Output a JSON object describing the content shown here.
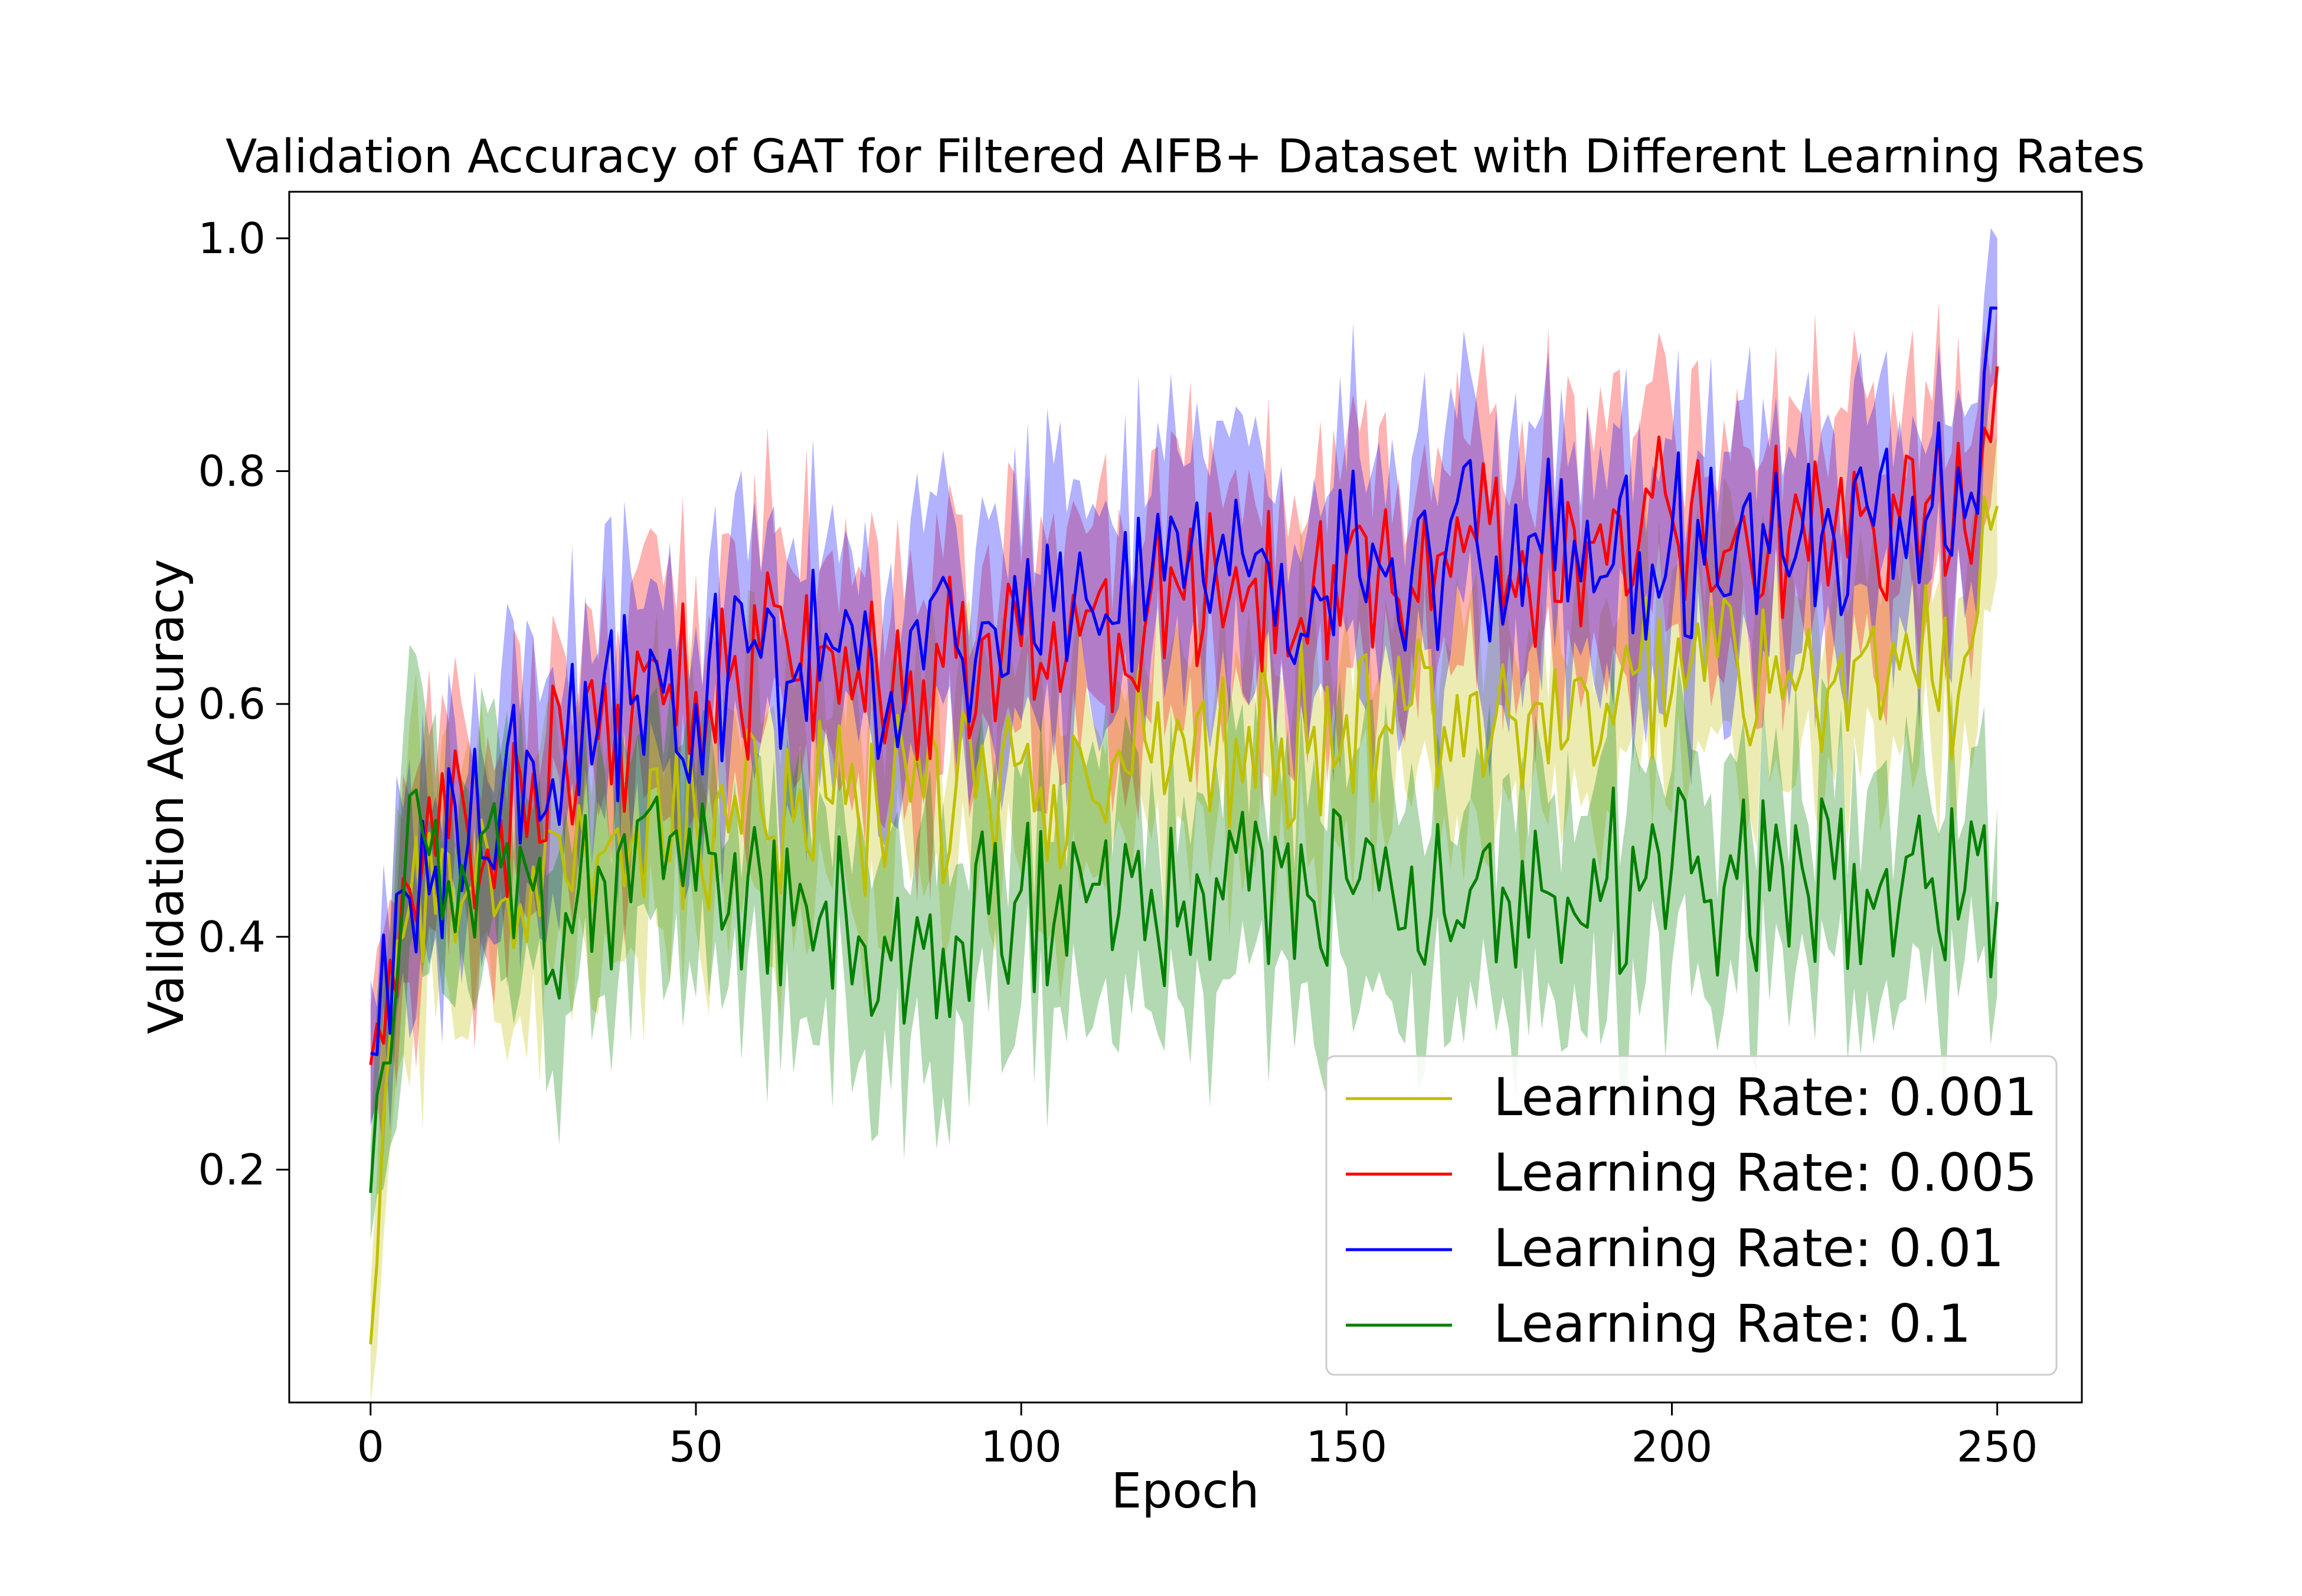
{
  "chart_data": {
    "type": "line",
    "title": "Validation Accuracy of GAT for Filtered AIFB+ Dataset with Different Learning Rates",
    "xlabel": "Epoch",
    "ylabel": "Validation Accuracy",
    "xlim": [
      -12.5,
      263
    ],
    "ylim": [
      0.0,
      1.04
    ],
    "xticks": [
      0,
      50,
      100,
      150,
      200,
      250
    ],
    "xtick_labels": [
      "0",
      "50",
      "100",
      "150",
      "200",
      "250"
    ],
    "yticks": [
      0.2,
      0.4,
      0.6,
      0.8,
      1.0
    ],
    "ytick_labels": [
      "0.2",
      "0.4",
      "0.6",
      "0.8",
      "1.0"
    ],
    "grid": false,
    "legend_position": "lower-right",
    "shaded_band": "variability band around each series",
    "x_sample_step": 5,
    "series": [
      {
        "name": "Learning Rate: 0.001",
        "color": "#bfbf00",
        "x": [
          0,
          5,
          10,
          15,
          20,
          25,
          30,
          35,
          40,
          45,
          50,
          55,
          60,
          65,
          70,
          75,
          80,
          85,
          90,
          95,
          100,
          105,
          110,
          115,
          120,
          125,
          130,
          135,
          140,
          145,
          150,
          155,
          160,
          165,
          170,
          175,
          180,
          185,
          190,
          195,
          200,
          205,
          210,
          215,
          220,
          225,
          230,
          235,
          240,
          245,
          250
        ],
        "values": [
          0.05,
          0.4,
          0.42,
          0.44,
          0.43,
          0.46,
          0.45,
          0.47,
          0.48,
          0.47,
          0.5,
          0.49,
          0.51,
          0.5,
          0.52,
          0.5,
          0.51,
          0.52,
          0.53,
          0.52,
          0.55,
          0.53,
          0.54,
          0.56,
          0.55,
          0.57,
          0.56,
          0.58,
          0.57,
          0.58,
          0.59,
          0.57,
          0.6,
          0.58,
          0.61,
          0.59,
          0.6,
          0.62,
          0.6,
          0.63,
          0.61,
          0.62,
          0.64,
          0.61,
          0.63,
          0.62,
          0.65,
          0.63,
          0.62,
          0.64,
          0.77
        ],
        "band": [
          0.06,
          0.1,
          0.09,
          0.09,
          0.09,
          0.09,
          0.09,
          0.09,
          0.09,
          0.09,
          0.09,
          0.09,
          0.08,
          0.08,
          0.08,
          0.08,
          0.08,
          0.08,
          0.08,
          0.08,
          0.08,
          0.08,
          0.08,
          0.07,
          0.07,
          0.07,
          0.07,
          0.07,
          0.07,
          0.07,
          0.07,
          0.07,
          0.07,
          0.07,
          0.07,
          0.07,
          0.07,
          0.07,
          0.07,
          0.07,
          0.07,
          0.07,
          0.07,
          0.07,
          0.07,
          0.07,
          0.07,
          0.07,
          0.07,
          0.07,
          0.06
        ]
      },
      {
        "name": "Learning Rate: 0.005",
        "color": "#ff0000",
        "x": [
          0,
          5,
          10,
          15,
          20,
          25,
          30,
          35,
          40,
          45,
          50,
          55,
          60,
          65,
          70,
          75,
          80,
          85,
          90,
          95,
          100,
          105,
          110,
          115,
          120,
          125,
          130,
          135,
          140,
          145,
          150,
          155,
          160,
          165,
          170,
          175,
          180,
          185,
          190,
          195,
          200,
          205,
          210,
          215,
          220,
          225,
          230,
          235,
          240,
          245,
          250
        ],
        "values": [
          0.29,
          0.45,
          0.47,
          0.49,
          0.5,
          0.54,
          0.55,
          0.57,
          0.58,
          0.6,
          0.61,
          0.62,
          0.64,
          0.62,
          0.65,
          0.63,
          0.6,
          0.62,
          0.64,
          0.66,
          0.65,
          0.67,
          0.68,
          0.66,
          0.7,
          0.69,
          0.71,
          0.7,
          0.72,
          0.71,
          0.73,
          0.72,
          0.7,
          0.73,
          0.74,
          0.71,
          0.73,
          0.75,
          0.72,
          0.74,
          0.76,
          0.73,
          0.75,
          0.74,
          0.76,
          0.75,
          0.77,
          0.76,
          0.78,
          0.75,
          0.89
        ],
        "band": [
          0.05,
          0.08,
          0.08,
          0.08,
          0.08,
          0.08,
          0.08,
          0.08,
          0.08,
          0.08,
          0.08,
          0.08,
          0.08,
          0.08,
          0.08,
          0.08,
          0.08,
          0.08,
          0.08,
          0.08,
          0.08,
          0.08,
          0.08,
          0.08,
          0.08,
          0.08,
          0.08,
          0.08,
          0.08,
          0.08,
          0.08,
          0.08,
          0.08,
          0.08,
          0.08,
          0.08,
          0.08,
          0.08,
          0.08,
          0.08,
          0.08,
          0.08,
          0.08,
          0.08,
          0.08,
          0.08,
          0.08,
          0.08,
          0.08,
          0.08,
          0.06
        ]
      },
      {
        "name": "Learning Rate: 0.01",
        "color": "#0000ff",
        "x": [
          0,
          5,
          10,
          15,
          20,
          25,
          30,
          35,
          40,
          45,
          50,
          55,
          60,
          65,
          70,
          75,
          80,
          85,
          90,
          95,
          100,
          105,
          110,
          115,
          120,
          125,
          130,
          135,
          140,
          145,
          150,
          155,
          160,
          165,
          170,
          175,
          180,
          185,
          190,
          195,
          200,
          205,
          210,
          215,
          220,
          225,
          230,
          235,
          240,
          245,
          250
        ],
        "values": [
          0.3,
          0.44,
          0.46,
          0.48,
          0.51,
          0.55,
          0.56,
          0.58,
          0.6,
          0.61,
          0.6,
          0.63,
          0.64,
          0.62,
          0.66,
          0.63,
          0.61,
          0.63,
          0.65,
          0.67,
          0.66,
          0.68,
          0.69,
          0.67,
          0.71,
          0.7,
          0.72,
          0.71,
          0.72,
          0.7,
          0.73,
          0.72,
          0.71,
          0.72,
          0.74,
          0.7,
          0.73,
          0.74,
          0.71,
          0.73,
          0.75,
          0.72,
          0.74,
          0.73,
          0.75,
          0.74,
          0.77,
          0.76,
          0.77,
          0.76,
          0.94
        ],
        "band": [
          0.05,
          0.08,
          0.08,
          0.08,
          0.08,
          0.08,
          0.08,
          0.08,
          0.08,
          0.08,
          0.08,
          0.08,
          0.08,
          0.08,
          0.08,
          0.08,
          0.08,
          0.08,
          0.08,
          0.08,
          0.08,
          0.08,
          0.08,
          0.08,
          0.08,
          0.08,
          0.08,
          0.08,
          0.08,
          0.08,
          0.08,
          0.08,
          0.08,
          0.08,
          0.08,
          0.08,
          0.08,
          0.08,
          0.08,
          0.08,
          0.08,
          0.08,
          0.08,
          0.08,
          0.08,
          0.08,
          0.08,
          0.08,
          0.08,
          0.08,
          0.06
        ]
      },
      {
        "name": "Learning Rate: 0.1",
        "color": "#008000",
        "x": [
          0,
          5,
          10,
          15,
          20,
          25,
          30,
          35,
          40,
          45,
          50,
          55,
          60,
          65,
          70,
          75,
          80,
          85,
          90,
          95,
          100,
          105,
          110,
          115,
          120,
          125,
          130,
          135,
          140,
          145,
          150,
          155,
          160,
          165,
          170,
          175,
          180,
          185,
          190,
          195,
          200,
          205,
          210,
          215,
          220,
          225,
          230,
          235,
          240,
          245,
          250
        ],
        "values": [
          0.18,
          0.43,
          0.5,
          0.44,
          0.46,
          0.44,
          0.42,
          0.46,
          0.43,
          0.45,
          0.44,
          0.42,
          0.45,
          0.41,
          0.43,
          0.4,
          0.38,
          0.39,
          0.4,
          0.42,
          0.44,
          0.41,
          0.43,
          0.42,
          0.44,
          0.43,
          0.45,
          0.44,
          0.46,
          0.43,
          0.45,
          0.44,
          0.46,
          0.42,
          0.45,
          0.43,
          0.44,
          0.42,
          0.45,
          0.44,
          0.46,
          0.43,
          0.45,
          0.44,
          0.46,
          0.45,
          0.44,
          0.43,
          0.45,
          0.44,
          0.43
        ],
        "band": [
          0.05,
          0.1,
          0.08,
          0.08,
          0.08,
          0.08,
          0.08,
          0.08,
          0.08,
          0.08,
          0.08,
          0.08,
          0.08,
          0.08,
          0.08,
          0.08,
          0.08,
          0.08,
          0.08,
          0.08,
          0.08,
          0.08,
          0.08,
          0.08,
          0.08,
          0.08,
          0.08,
          0.08,
          0.08,
          0.08,
          0.08,
          0.08,
          0.08,
          0.08,
          0.08,
          0.08,
          0.08,
          0.08,
          0.08,
          0.08,
          0.08,
          0.08,
          0.08,
          0.08,
          0.08,
          0.08,
          0.08,
          0.08,
          0.08,
          0.08,
          0.08
        ]
      }
    ]
  }
}
